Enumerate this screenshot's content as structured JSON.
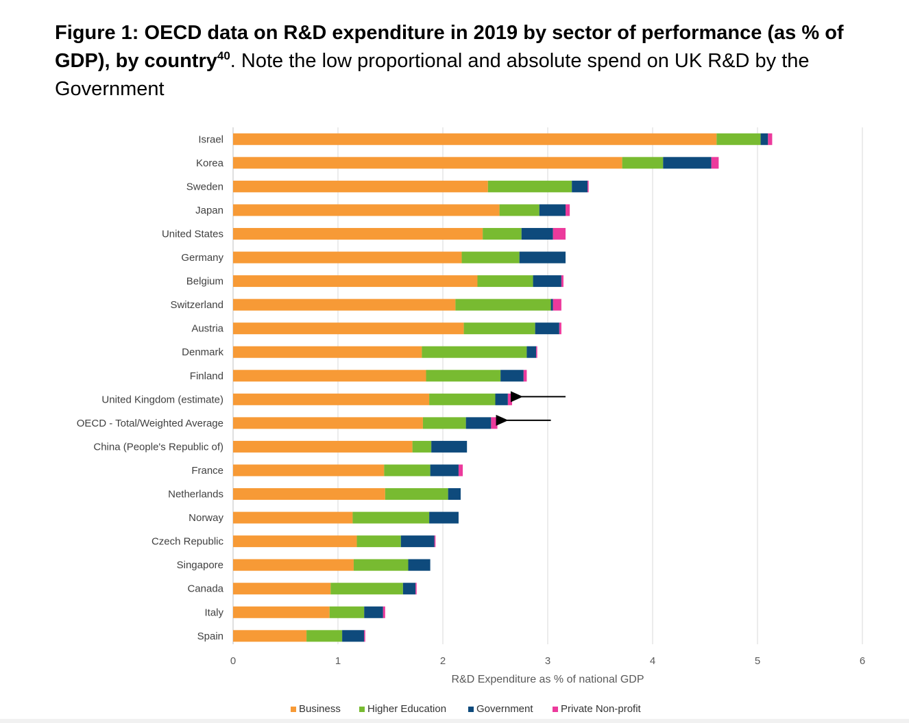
{
  "caption": {
    "bold_part": "Figure 1: OECD data on R&D expenditure in 2019 by sector of performance (as % of GDP), by country",
    "footnote": "40",
    "rest": ". Note the low proportional and absolute spend on UK R&D by the Government"
  },
  "chart_data": {
    "type": "bar",
    "orientation": "horizontal",
    "stacked": true,
    "xlabel": "R&D Expenditure as % of national GDP",
    "xlim": [
      0,
      6
    ],
    "xticks": [
      0,
      1,
      2,
      3,
      4,
      5,
      6
    ],
    "grid": "vertical",
    "legend_position": "bottom",
    "categories": [
      "Israel",
      "Korea",
      "Sweden",
      "Japan",
      "United States",
      "Germany",
      "Belgium",
      "Switzerland",
      "Austria",
      "Denmark",
      "Finland",
      "United Kingdom (estimate)",
      "OECD - Total/Weighted Average",
      "China (People's Republic of)",
      "France",
      "Netherlands",
      "Norway",
      "Czech Republic",
      "Singapore",
      "Canada",
      "Italy",
      "Spain"
    ],
    "series": [
      {
        "name": "Business",
        "color": "#f79a36",
        "values": [
          4.61,
          3.71,
          2.43,
          2.54,
          2.38,
          2.18,
          2.33,
          2.12,
          2.2,
          1.8,
          1.84,
          1.87,
          1.81,
          1.71,
          1.44,
          1.45,
          1.14,
          1.18,
          1.15,
          0.93,
          0.92,
          0.7
        ]
      },
      {
        "name": "Higher Education",
        "color": "#78bb31",
        "values": [
          0.42,
          0.39,
          0.8,
          0.38,
          0.37,
          0.55,
          0.53,
          0.91,
          0.68,
          1.0,
          0.71,
          0.63,
          0.41,
          0.18,
          0.44,
          0.6,
          0.73,
          0.42,
          0.52,
          0.69,
          0.33,
          0.34
        ]
      },
      {
        "name": "Government",
        "color": "#0e4a7c",
        "values": [
          0.07,
          0.46,
          0.15,
          0.25,
          0.3,
          0.44,
          0.27,
          0.02,
          0.23,
          0.09,
          0.22,
          0.12,
          0.24,
          0.34,
          0.27,
          0.12,
          0.28,
          0.32,
          0.21,
          0.12,
          0.18,
          0.21
        ]
      },
      {
        "name": "Private Non-profit",
        "color": "#ec3a9c",
        "values": [
          0.04,
          0.07,
          0.01,
          0.04,
          0.12,
          0.0,
          0.02,
          0.08,
          0.02,
          0.01,
          0.03,
          0.04,
          0.06,
          0.0,
          0.04,
          0.0,
          0.0,
          0.01,
          0.0,
          0.01,
          0.02,
          0.01
        ]
      }
    ],
    "annotations": [
      {
        "type": "arrow",
        "target": "United Kingdom (estimate)"
      },
      {
        "type": "arrow",
        "target": "OECD - Total/Weighted Average"
      }
    ]
  }
}
